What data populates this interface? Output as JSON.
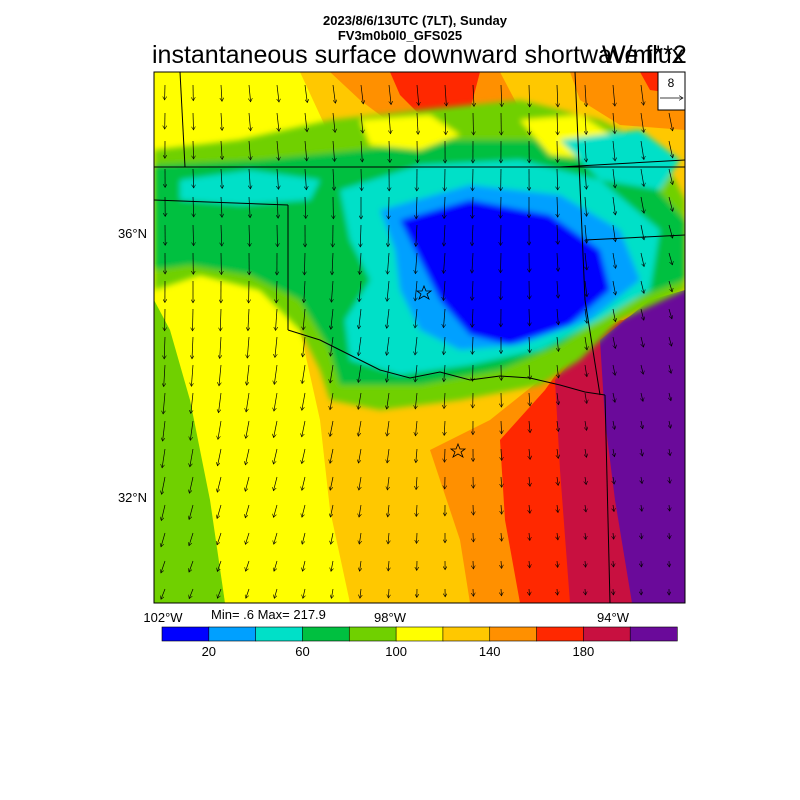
{
  "header": {
    "date_line": "2023/8/6/13UTC (7LT), Sunday",
    "model_line": "FV3m0b0l0_GFS025",
    "field_title": "instantaneous surface downward shortwave flux",
    "units": "W/m**2"
  },
  "reference_vector": {
    "label": "8"
  },
  "axes": {
    "lat_labels": [
      "36°N",
      "32°N"
    ],
    "lon_labels": [
      "102°W",
      "98°W",
      "94°W"
    ]
  },
  "stats": {
    "text": "Min= .6 Max= 217.9"
  },
  "colorbar": {
    "colors": [
      "#0000ff",
      "#00a0ff",
      "#00e0c8",
      "#00c040",
      "#70d000",
      "#ffff00",
      "#ffc800",
      "#ff9000",
      "#ff2800",
      "#c81040",
      "#6a0a9a"
    ],
    "tick_labels": [
      "20",
      "60",
      "100",
      "140",
      "180"
    ]
  }
}
